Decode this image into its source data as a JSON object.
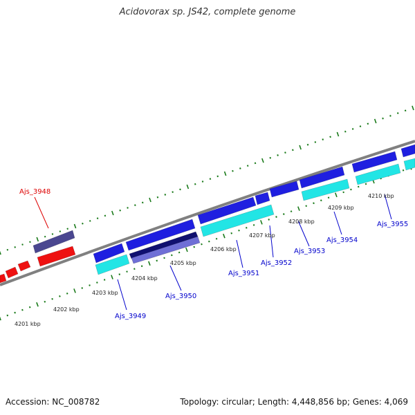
{
  "title": "Acidovorax sp. JS42, complete genome",
  "footer": {
    "accession": "Accession: NC_008782",
    "summary": "Topology: circular; Length: 4,448,856 bp; Genes: 4,069"
  },
  "colors": {
    "backbone": "#808080",
    "ticks": "#1a7a1a",
    "label_forward": "#0000cc",
    "label_reverse": "#dd0000",
    "gene_blue": "#1f1fe0",
    "gene_cyan": "#22e5e5",
    "gene_red": "#ee1111",
    "gene_slate": "#4a4790",
    "gene_navy": "#101070",
    "gene_lilac": "#6f6fd6"
  },
  "scale_labels": [
    "4201 kbp",
    "4202 kbp",
    "4203 kbp",
    "4204 kbp",
    "4205 kbp",
    "4206 kbp",
    "4207 kbp",
    "4208 kbp",
    "4209 kbp",
    "4210 kbp"
  ],
  "gene_labels": [
    "Ajs_3948",
    "Ajs_3949",
    "Ajs_3950",
    "Ajs_3951",
    "Ajs_3952",
    "Ajs_3953",
    "Ajs_3954",
    "Ajs_3955"
  ]
}
